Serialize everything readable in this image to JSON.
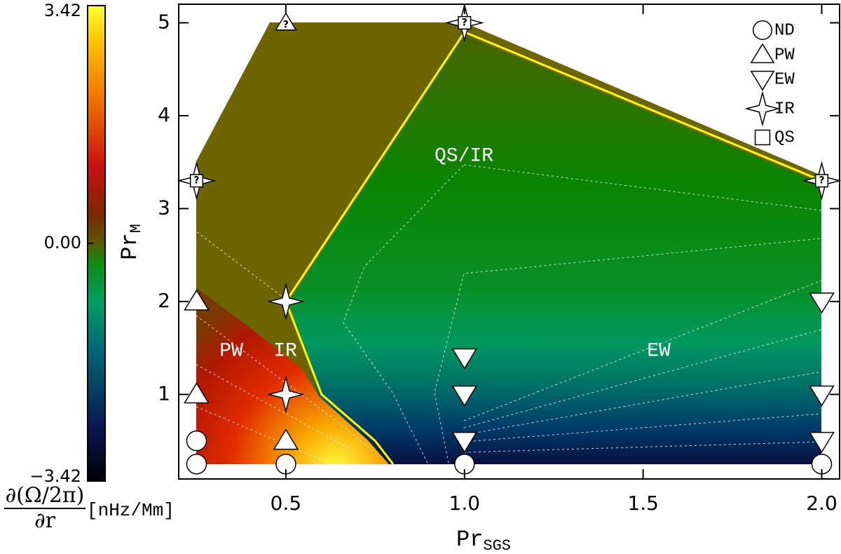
{
  "chart_data": {
    "type": "regime",
    "x_label": {
      "text": "Pr",
      "sub": "SGS"
    },
    "y_label": {
      "text": "Pr",
      "sub": "M"
    },
    "xlim": [
      0.2,
      2.05
    ],
    "ylim": [
      0.09,
      5.2
    ],
    "xticks": [
      0.5,
      {
        "value": 1.0,
        "label": "1.0"
      },
      1.5,
      {
        "value": 2.0,
        "label": "2.0"
      }
    ],
    "yticks": [
      1,
      2,
      3,
      4,
      5
    ],
    "colorbar": {
      "lim": [
        -3.42,
        3.42
      ],
      "ticks": [
        {
          "value": -3.42,
          "label": "−3.42"
        },
        {
          "value": 0,
          "label": "0.00"
        },
        3.42
      ],
      "label_num": "∂(Ω/2π)",
      "label_den": "∂r",
      "unit": "[nHz/Mm]"
    },
    "regions": [
      "PW",
      "IR",
      "QS/IR",
      "EW"
    ],
    "boundary": {
      "color": "#ffff00",
      "x": [
        0.8,
        0.75,
        0.6,
        0.5,
        1.0,
        2.0
      ],
      "y": [
        0.25,
        0.5,
        1.0,
        2.0,
        4.9,
        3.3
      ]
    },
    "markers": [
      {
        "name": "ND",
        "shape": "circle"
      },
      {
        "name": "PW",
        "shape": "up"
      },
      {
        "name": "EW",
        "shape": "down"
      },
      {
        "name": "IR",
        "shape": "star"
      },
      {
        "name": "QS",
        "shape": "square"
      }
    ],
    "points": [
      {
        "x": 0.25,
        "y": 0.25,
        "marker": [
          "ND"
        ]
      },
      {
        "x": 0.25,
        "y": 0.5,
        "marker": [
          "ND"
        ]
      },
      {
        "x": 0.25,
        "y": 1.0,
        "marker": [
          "PW"
        ]
      },
      {
        "x": 0.25,
        "y": 2.0,
        "marker": [
          "PW"
        ]
      },
      {
        "x": 0.25,
        "y": 3.3,
        "marker": [
          "IR",
          "QS"
        ],
        "label": "?"
      },
      {
        "x": 0.5,
        "y": 0.25,
        "marker": [
          "ND"
        ]
      },
      {
        "x": 0.5,
        "y": 0.5,
        "marker": [
          "PW"
        ]
      },
      {
        "x": 0.5,
        "y": 1.0,
        "marker": [
          "IR"
        ]
      },
      {
        "x": 0.5,
        "y": 2.0,
        "marker": [
          "IR"
        ]
      },
      {
        "x": 0.5,
        "y": 5.0,
        "marker": [
          "PW"
        ],
        "label": "?"
      },
      {
        "x": 1.0,
        "y": 0.25,
        "marker": [
          "ND"
        ]
      },
      {
        "x": 1.0,
        "y": 0.5,
        "marker": [
          "EW"
        ]
      },
      {
        "x": 1.0,
        "y": 1.0,
        "marker": [
          "EW"
        ]
      },
      {
        "x": 1.0,
        "y": 1.4,
        "marker": [
          "EW"
        ]
      },
      {
        "x": 1.0,
        "y": 5.0,
        "marker": [
          "IR",
          "QS"
        ],
        "label": "?"
      },
      {
        "x": 2.0,
        "y": 0.25,
        "marker": [
          "ND"
        ]
      },
      {
        "x": 2.0,
        "y": 0.5,
        "marker": [
          "EW"
        ]
      },
      {
        "x": 2.0,
        "y": 1.0,
        "marker": [
          "EW"
        ]
      },
      {
        "x": 2.0,
        "y": 2.0,
        "marker": [
          "EW"
        ]
      },
      {
        "x": 2.0,
        "y": 3.3,
        "marker": [
          "IR",
          "QS"
        ],
        "label": "?"
      }
    ]
  }
}
